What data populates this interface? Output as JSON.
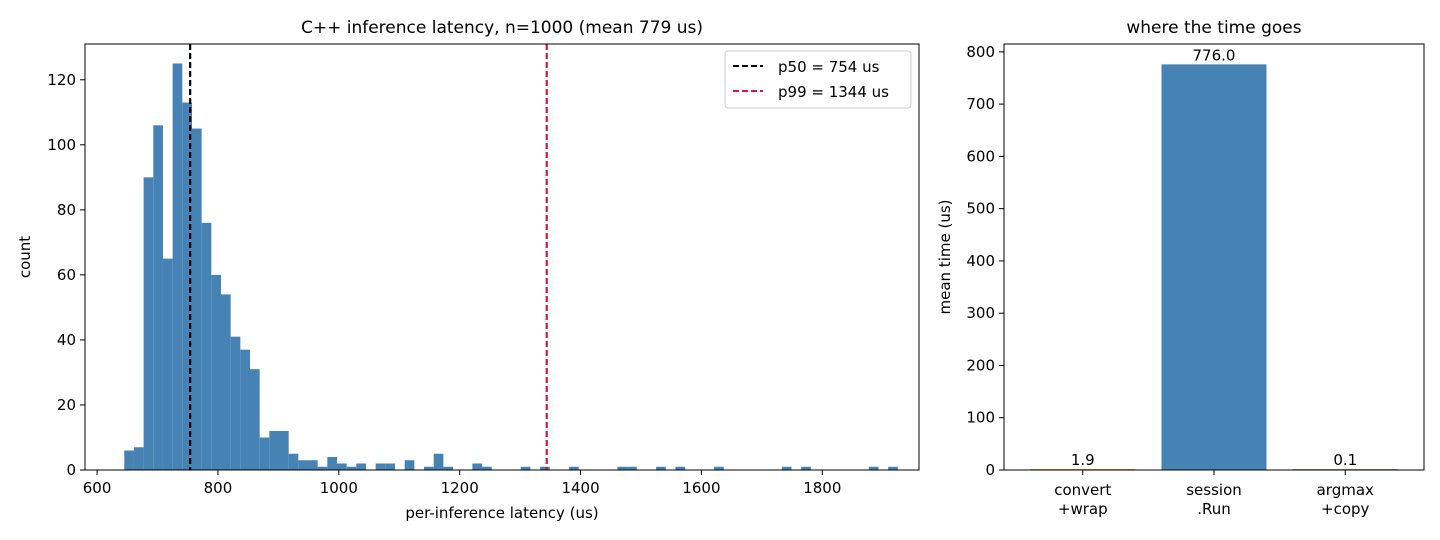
{
  "chart_data": [
    {
      "type": "bar",
      "subtype": "histogram",
      "title": "C++ inference latency, n=1000 (mean 779 us)",
      "xlabel": "per-inference latency (us)",
      "ylabel": "count",
      "xlim": [
        580,
        1960
      ],
      "ylim": [
        0,
        131
      ],
      "xticks": [
        600,
        800,
        1000,
        1200,
        1400,
        1600,
        1800
      ],
      "yticks": [
        0,
        20,
        40,
        60,
        80,
        100,
        120
      ],
      "bin_width": 16,
      "bins": [
        [
          645,
          6
        ],
        [
          661,
          7
        ],
        [
          677,
          90
        ],
        [
          693,
          106
        ],
        [
          709,
          65
        ],
        [
          725,
          125
        ],
        [
          741,
          113
        ],
        [
          757,
          105
        ],
        [
          773,
          76
        ],
        [
          789,
          60
        ],
        [
          805,
          54
        ],
        [
          821,
          41
        ],
        [
          837,
          37
        ],
        [
          853,
          31
        ],
        [
          869,
          10
        ],
        [
          885,
          12
        ],
        [
          901,
          12
        ],
        [
          917,
          5
        ],
        [
          933,
          3
        ],
        [
          949,
          3
        ],
        [
          965,
          1
        ],
        [
          981,
          4
        ],
        [
          997,
          2
        ],
        [
          1013,
          1
        ],
        [
          1029,
          2
        ],
        [
          1061,
          2
        ],
        [
          1077,
          2
        ],
        [
          1109,
          3
        ],
        [
          1141,
          1
        ],
        [
          1157,
          5
        ],
        [
          1173,
          1
        ],
        [
          1221,
          2
        ],
        [
          1237,
          1
        ],
        [
          1301,
          1
        ],
        [
          1333,
          1
        ],
        [
          1381,
          1
        ],
        [
          1461,
          1
        ],
        [
          1477,
          1
        ],
        [
          1525,
          1
        ],
        [
          1557,
          1
        ],
        [
          1621,
          1
        ],
        [
          1733,
          1
        ],
        [
          1765,
          1
        ],
        [
          1877,
          1
        ],
        [
          1909,
          1
        ]
      ],
      "color": "#4682b4",
      "vlines": [
        {
          "label": "p50 = 754 us",
          "x": 754,
          "color": "#000000",
          "style": "dashed"
        },
        {
          "label": "p99 = 1344 us",
          "x": 1344,
          "color": "#dc143c",
          "style": "dashed"
        }
      ],
      "legend": "top-right",
      "grid": false
    },
    {
      "type": "bar",
      "title": "where the time goes",
      "xlabel": "",
      "ylabel": "mean time (us)",
      "ylim": [
        0,
        815
      ],
      "yticks": [
        0,
        100,
        200,
        300,
        400,
        500,
        600,
        700,
        800
      ],
      "categories": [
        [
          "convert",
          "+wrap"
        ],
        [
          "session",
          ".Run"
        ],
        [
          "argmax",
          "+copy"
        ]
      ],
      "values": [
        1.9,
        776.0,
        0.1
      ],
      "value_labels": [
        "1.9",
        "776.0",
        "0.1"
      ],
      "colors": [
        "#f0a830",
        "#4682b4",
        "#7fbf7f"
      ],
      "grid": false
    }
  ]
}
